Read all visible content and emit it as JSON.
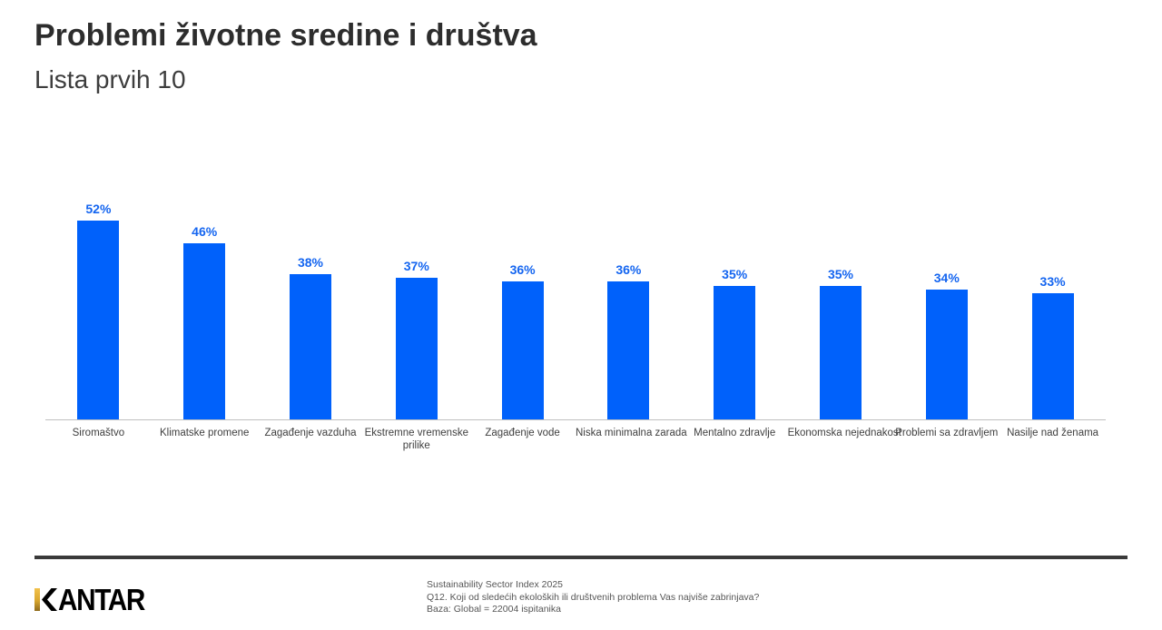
{
  "header": {
    "title": "Problemi životne sredine i društva",
    "subtitle": "Lista prvih 10"
  },
  "chart_data": {
    "type": "bar",
    "title": "Problemi životne sredine i društva — Lista prvih 10",
    "categories": [
      "Siromaštvo",
      "Klimatske promene",
      "Zagađenje vazduha",
      "Ekstremne vremenske\nprilike",
      "Zagađenje vode",
      "Niska minimalna zarada",
      "Mentalno zdravlje",
      "Ekonomska nejednakost",
      "Problemi sa zdravljem",
      "Nasilje nad ženama"
    ],
    "values": [
      52,
      46,
      38,
      37,
      36,
      36,
      35,
      35,
      34,
      33
    ],
    "value_labels": [
      "52%",
      "46%",
      "38%",
      "37%",
      "36%",
      "36%",
      "35%",
      "35%",
      "34%",
      "33%"
    ],
    "xlabel": "",
    "ylabel": "",
    "ylim": [
      0,
      55
    ],
    "grid": false,
    "legend": null,
    "bar_color": "#0061fb",
    "label_color": "#1465f0"
  },
  "footer": {
    "logo_name": "KANTAR",
    "logo_letters_after_k": "ANTAR",
    "source_lines": [
      "Sustainability Sector Index 2025",
      "Q12. Koji od sledećih ekoloških ili društvenih problema Vas najviše zabrinjava?",
      "Baza: Global = 22004 ispitanika"
    ]
  }
}
